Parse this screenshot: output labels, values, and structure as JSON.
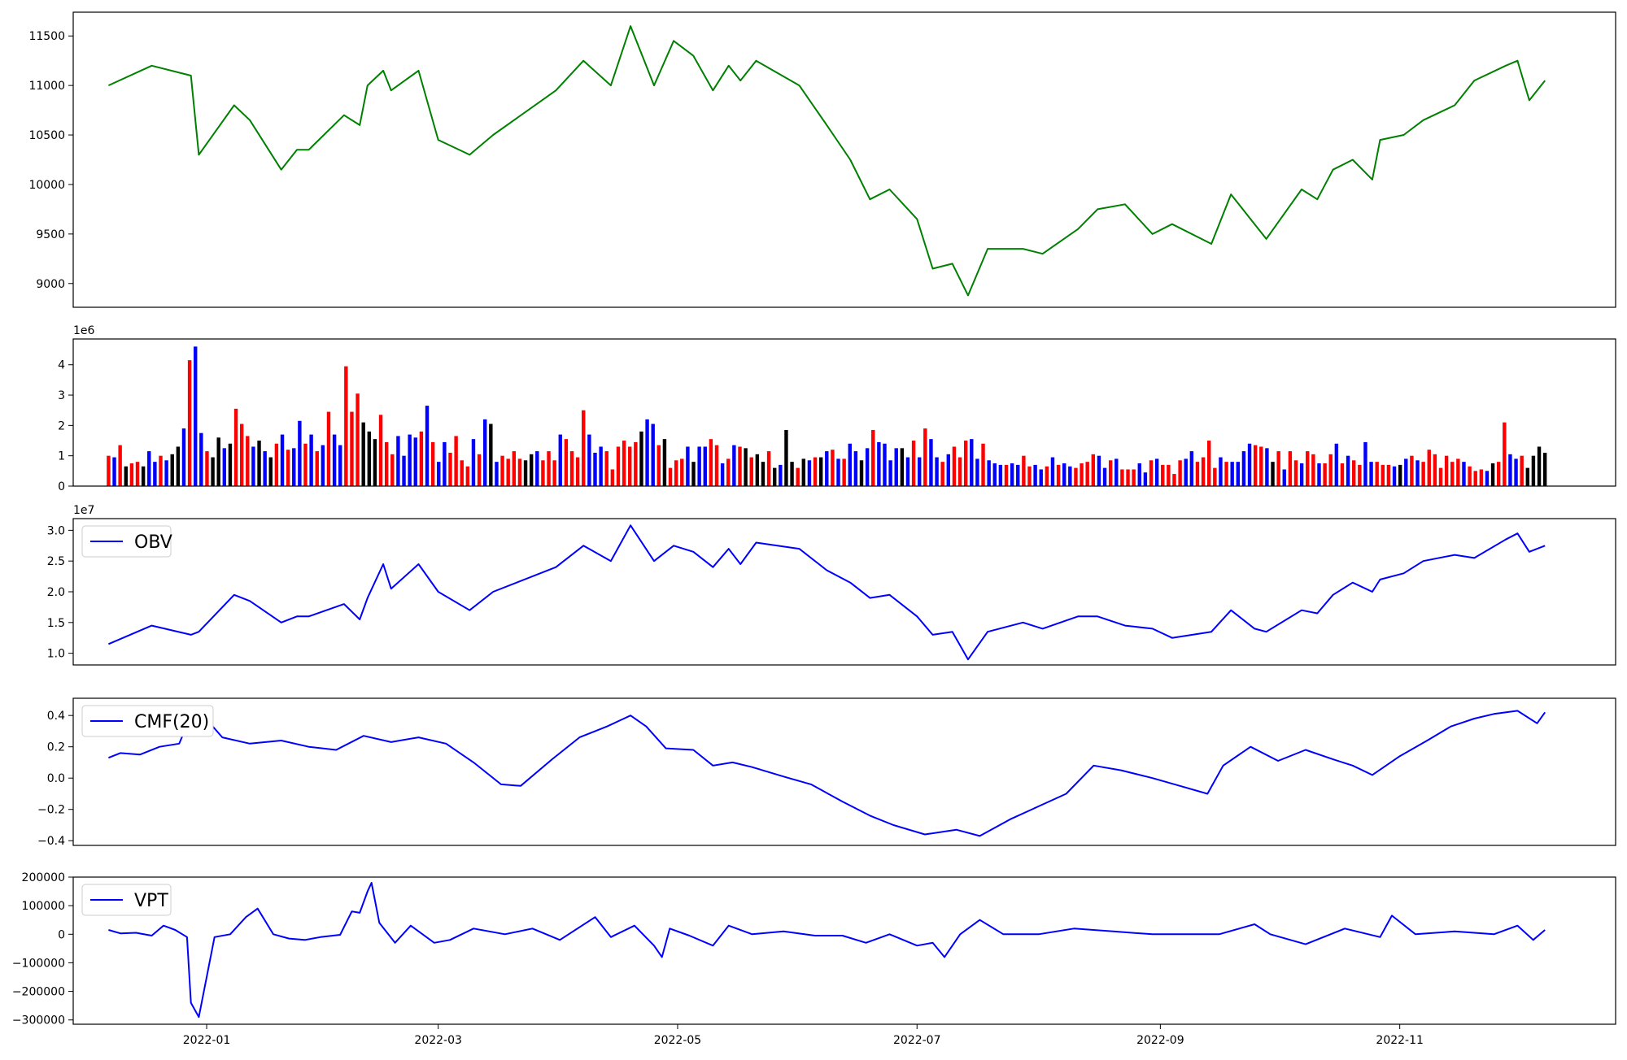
{
  "chart_data": [
    {
      "type": "line",
      "x": [
        "2021-12-07",
        "2021-12-18",
        "2021-12-28",
        "2021-12-30",
        "2022-01-08",
        "2022-01-12",
        "2022-01-20",
        "2022-01-24",
        "2022-01-27",
        "2022-02-05",
        "2022-02-09",
        "2022-02-11",
        "2022-02-15",
        "2022-02-17",
        "2022-02-24",
        "2022-03-01",
        "2022-03-09",
        "2022-03-15",
        "2022-03-31",
        "2022-04-07",
        "2022-04-14",
        "2022-04-19",
        "2022-04-25",
        "2022-04-30",
        "2022-05-05",
        "2022-05-10",
        "2022-05-14",
        "2022-05-17",
        "2022-05-21",
        "2022-06-01",
        "2022-06-08",
        "2022-06-14",
        "2022-06-19",
        "2022-06-24",
        "2022-07-01",
        "2022-07-05",
        "2022-07-10",
        "2022-07-14",
        "2022-07-19",
        "2022-07-28",
        "2022-08-02",
        "2022-08-11",
        "2022-08-16",
        "2022-08-23",
        "2022-08-30",
        "2022-09-04",
        "2022-09-14",
        "2022-09-19",
        "2022-09-25",
        "2022-09-28",
        "2022-10-07",
        "2022-10-11",
        "2022-10-15",
        "2022-10-20",
        "2022-10-25",
        "2022-10-27",
        "2022-11-02",
        "2022-11-07",
        "2022-11-15",
        "2022-11-20",
        "2022-11-28",
        "2022-12-01",
        "2022-12-04",
        "2022-12-08"
      ],
      "y": [
        11000,
        11200,
        11100,
        10300,
        10800,
        10650,
        10150,
        10350,
        10350,
        10700,
        10600,
        11000,
        11150,
        10950,
        11150,
        10450,
        10300,
        10500,
        10950,
        11250,
        11000,
        11600,
        11000,
        11450,
        11300,
        10950,
        11200,
        11050,
        11250,
        11000,
        10600,
        10250,
        9850,
        9950,
        9650,
        9150,
        9200,
        8880,
        9350,
        9350,
        9300,
        9550,
        9750,
        9800,
        9500,
        9600,
        9400,
        9900,
        9600,
        9450,
        9950,
        9850,
        10150,
        10250,
        10050,
        10450,
        10500,
        10650,
        10800,
        11050,
        11200,
        11250,
        10850,
        11050
      ],
      "ylim": [
        8760,
        11740
      ],
      "yticks": [
        9000,
        9500,
        10000,
        10500,
        11000,
        11500
      ],
      "color": "#008000",
      "grid": false
    },
    {
      "type": "bar",
      "x_start": "2021-12-07",
      "x_end": "2022-12-08",
      "values": [
        1.0,
        0.95,
        1.35,
        0.65,
        0.75,
        0.8,
        0.65,
        1.15,
        0.8,
        1.0,
        0.85,
        1.05,
        1.3,
        1.9,
        4.15,
        4.6,
        1.75,
        1.15,
        0.95,
        1.6,
        1.25,
        1.4,
        2.55,
        2.05,
        1.65,
        1.3,
        1.5,
        1.15,
        0.95,
        1.4,
        1.7,
        1.2,
        1.25,
        2.15,
        1.4,
        1.7,
        1.15,
        1.35,
        2.45,
        1.7,
        1.35,
        3.95,
        2.45,
        3.05,
        2.1,
        1.8,
        1.55,
        2.35,
        1.45,
        1.05,
        1.65,
        1.0,
        1.7,
        1.6,
        1.8,
        2.65,
        1.45,
        0.8,
        1.45,
        1.1,
        1.65,
        0.85,
        0.65,
        1.55,
        1.05,
        2.2,
        2.05,
        0.8,
        1.0,
        0.9,
        1.15,
        0.9,
        0.85,
        1.05,
        1.15,
        0.85,
        1.15,
        0.85,
        1.7,
        1.55,
        1.15,
        0.95,
        2.5,
        1.7,
        1.1,
        1.3,
        1.15,
        0.55,
        1.3,
        1.5,
        1.3,
        1.45,
        1.8,
        2.2,
        2.05,
        1.35,
        1.55,
        0.6,
        0.85,
        0.9,
        1.3,
        0.8,
        1.3,
        1.3,
        1.55,
        1.35,
        0.75,
        0.9,
        1.35,
        1.3,
        1.25,
        0.95,
        1.05,
        0.8,
        1.15,
        0.6,
        0.7,
        1.85,
        0.8,
        0.6,
        0.9,
        0.85,
        0.95,
        0.95,
        1.15,
        1.2,
        0.9,
        0.9,
        1.4,
        1.15,
        0.85,
        1.25,
        1.85,
        1.45,
        1.4,
        0.85,
        1.25,
        1.25,
        0.95,
        1.5,
        0.95,
        1.9,
        1.55,
        0.95,
        0.8,
        1.05,
        1.3,
        0.95,
        1.5,
        1.55,
        0.9,
        1.4,
        0.85,
        0.75,
        0.7,
        0.7,
        0.75,
        0.7,
        1.0,
        0.65,
        0.7,
        0.55,
        0.65,
        0.95,
        0.7,
        0.75,
        0.65,
        0.6,
        0.75,
        0.8,
        1.05,
        1.0,
        0.6,
        0.85,
        0.9,
        0.55,
        0.55,
        0.55,
        0.75,
        0.45,
        0.85,
        0.9,
        0.7,
        0.7,
        0.4,
        0.85,
        0.9,
        1.15,
        0.8,
        0.95,
        1.5,
        0.6,
        0.95,
        0.8,
        0.8,
        0.8,
        1.15,
        1.4,
        1.35,
        1.3,
        1.25,
        0.8,
        1.15,
        0.55,
        1.15,
        0.85,
        0.75,
        1.15,
        1.05,
        0.75,
        0.75,
        1.05,
        1.4,
        0.75,
        1.0,
        0.85,
        0.7,
        1.45,
        0.8,
        0.8,
        0.7,
        0.7,
        0.65,
        0.7,
        0.9,
        1.0,
        0.85,
        0.8,
        1.2,
        1.05,
        0.6,
        1.0,
        0.8,
        0.9,
        0.8,
        0.65,
        0.5,
        0.55,
        0.5,
        0.75,
        0.8,
        2.1,
        1.05,
        0.9,
        1.0,
        0.6,
        1.0,
        1.3,
        1.1
      ],
      "colors": [
        "r",
        "b",
        "r",
        "k",
        "r",
        "r",
        "k",
        "b",
        "b",
        "r",
        "b",
        "k",
        "k",
        "b",
        "r",
        "b",
        "b",
        "r",
        "k",
        "k",
        "b",
        "k",
        "r",
        "r",
        "r",
        "b",
        "k",
        "b",
        "k",
        "r",
        "b",
        "r",
        "b",
        "b",
        "r",
        "b",
        "r",
        "b",
        "r",
        "b",
        "b",
        "r",
        "r",
        "r",
        "k",
        "k",
        "k",
        "r",
        "r",
        "r",
        "b",
        "b",
        "b",
        "b",
        "r",
        "b",
        "r",
        "b",
        "b",
        "r",
        "r",
        "r",
        "r",
        "b",
        "r",
        "b",
        "k",
        "b",
        "r",
        "r",
        "r",
        "r",
        "k",
        "k",
        "b",
        "r",
        "r",
        "r",
        "b",
        "r",
        "r",
        "r",
        "r",
        "b",
        "b",
        "b",
        "r",
        "r",
        "r",
        "r",
        "r",
        "r",
        "k",
        "b",
        "b",
        "r",
        "k",
        "r",
        "r",
        "r",
        "b",
        "k",
        "b",
        "b",
        "r",
        "r",
        "b",
        "r",
        "b",
        "r",
        "k",
        "r",
        "k",
        "k",
        "r",
        "k",
        "b",
        "k",
        "k",
        "r",
        "k",
        "b",
        "r",
        "k",
        "b",
        "r",
        "b",
        "r",
        "b",
        "b",
        "k",
        "b",
        "r",
        "b",
        "b",
        "b",
        "b",
        "k",
        "b",
        "r",
        "b",
        "r",
        "b",
        "b",
        "r",
        "b",
        "r",
        "r",
        "r",
        "b",
        "b",
        "r",
        "b",
        "b",
        "b",
        "r",
        "b",
        "b",
        "r",
        "r",
        "b",
        "b",
        "r",
        "b",
        "r",
        "b",
        "b",
        "r",
        "r",
        "r",
        "r",
        "b",
        "b",
        "r",
        "b",
        "r",
        "r",
        "r",
        "b",
        "b",
        "r",
        "b",
        "r",
        "r",
        "r",
        "r",
        "b",
        "b",
        "r",
        "r",
        "r",
        "r",
        "b",
        "r",
        "b",
        "b",
        "b",
        "b",
        "r",
        "r",
        "b",
        "k",
        "r",
        "b",
        "r",
        "r",
        "b",
        "r",
        "r",
        "b",
        "r",
        "r",
        "b",
        "r",
        "b",
        "r",
        "r",
        "b",
        "b",
        "r",
        "r",
        "r",
        "b",
        "k",
        "b",
        "r",
        "b",
        "r",
        "r",
        "r",
        "r",
        "r",
        "r",
        "r",
        "b",
        "r",
        "r",
        "r",
        "b",
        "k",
        "r",
        "r",
        "b",
        "b",
        "r"
      ],
      "ylim": [
        0,
        4.85
      ],
      "yticks": [
        0,
        1,
        2,
        3,
        4
      ],
      "offset_text": "1e6",
      "grid": false
    },
    {
      "type": "line",
      "x": [
        "2021-12-07",
        "2021-12-18",
        "2021-12-28",
        "2021-12-30",
        "2022-01-08",
        "2022-01-12",
        "2022-01-20",
        "2022-01-24",
        "2022-01-27",
        "2022-02-05",
        "2022-02-09",
        "2022-02-11",
        "2022-02-15",
        "2022-02-17",
        "2022-02-24",
        "2022-03-01",
        "2022-03-09",
        "2022-03-15",
        "2022-03-31",
        "2022-04-07",
        "2022-04-14",
        "2022-04-19",
        "2022-04-25",
        "2022-04-30",
        "2022-05-05",
        "2022-05-10",
        "2022-05-14",
        "2022-05-17",
        "2022-05-21",
        "2022-06-01",
        "2022-06-08",
        "2022-06-14",
        "2022-06-19",
        "2022-06-24",
        "2022-07-01",
        "2022-07-05",
        "2022-07-10",
        "2022-07-14",
        "2022-07-19",
        "2022-07-28",
        "2022-08-02",
        "2022-08-11",
        "2022-08-16",
        "2022-08-23",
        "2022-08-30",
        "2022-09-04",
        "2022-09-14",
        "2022-09-19",
        "2022-09-25",
        "2022-09-28",
        "2022-10-07",
        "2022-10-11",
        "2022-10-15",
        "2022-10-20",
        "2022-10-25",
        "2022-10-27",
        "2022-11-02",
        "2022-11-07",
        "2022-11-15",
        "2022-11-20",
        "2022-11-28",
        "2022-12-01",
        "2022-12-04",
        "2022-12-08"
      ],
      "y": [
        1.15,
        1.45,
        1.3,
        1.35,
        1.95,
        1.85,
        1.5,
        1.6,
        1.6,
        1.8,
        1.55,
        1.9,
        2.45,
        2.05,
        2.45,
        2.0,
        1.7,
        2.0,
        2.4,
        2.75,
        2.5,
        3.08,
        2.5,
        2.75,
        2.65,
        2.4,
        2.7,
        2.45,
        2.8,
        2.7,
        2.35,
        2.15,
        1.9,
        1.95,
        1.6,
        1.3,
        1.35,
        0.9,
        1.35,
        1.5,
        1.4,
        1.6,
        1.6,
        1.45,
        1.4,
        1.25,
        1.35,
        1.7,
        1.4,
        1.35,
        1.7,
        1.65,
        1.95,
        2.15,
        2.0,
        2.2,
        2.3,
        2.5,
        2.6,
        2.55,
        2.85,
        2.95,
        2.65,
        2.75
      ],
      "ylim": [
        0.81,
        3.19
      ],
      "yticks": [
        1.0,
        1.5,
        2.0,
        2.5,
        3.0
      ],
      "tick_labels": [
        "1.0",
        "1.5",
        "2.0",
        "2.5",
        "3.0"
      ],
      "offset_text": "1e7",
      "color": "#0000ff",
      "legend": [
        "OBV"
      ],
      "legend_position": "upper left",
      "grid": false
    },
    {
      "type": "line",
      "x": [
        "2021-12-07",
        "2021-12-10",
        "2021-12-15",
        "2021-12-20",
        "2021-12-25",
        "2021-12-29",
        "2022-01-05",
        "2022-01-12",
        "2022-01-20",
        "2022-01-27",
        "2022-02-03",
        "2022-02-10",
        "2022-02-17",
        "2022-02-24",
        "2022-03-03",
        "2022-03-10",
        "2022-03-17",
        "2022-03-22",
        "2022-03-30",
        "2022-04-06",
        "2022-04-13",
        "2022-04-19",
        "2022-04-23",
        "2022-04-28",
        "2022-05-05",
        "2022-05-10",
        "2022-05-15",
        "2022-05-20",
        "2022-05-28",
        "2022-06-04",
        "2022-06-12",
        "2022-06-19",
        "2022-06-25",
        "2022-07-03",
        "2022-07-11",
        "2022-07-17",
        "2022-07-25",
        "2022-08-01",
        "2022-08-08",
        "2022-08-15",
        "2022-08-22",
        "2022-08-30",
        "2022-09-06",
        "2022-09-13",
        "2022-09-17",
        "2022-09-24",
        "2022-10-01",
        "2022-10-08",
        "2022-10-15",
        "2022-10-20",
        "2022-10-25",
        "2022-11-01",
        "2022-11-08",
        "2022-11-14",
        "2022-11-20",
        "2022-11-25",
        "2022-12-01",
        "2022-12-06",
        "2022-12-08"
      ],
      "y": [
        0.13,
        0.16,
        0.15,
        0.2,
        0.22,
        0.46,
        0.26,
        0.22,
        0.24,
        0.2,
        0.18,
        0.27,
        0.23,
        0.26,
        0.22,
        0.1,
        -0.04,
        -0.05,
        0.12,
        0.26,
        0.33,
        0.4,
        0.33,
        0.19,
        0.18,
        0.08,
        0.1,
        0.07,
        0.01,
        -0.04,
        -0.15,
        -0.24,
        -0.3,
        -0.36,
        -0.33,
        -0.37,
        -0.26,
        -0.18,
        -0.1,
        0.08,
        0.05,
        0.0,
        -0.05,
        -0.1,
        0.08,
        0.2,
        0.11,
        0.18,
        0.12,
        0.08,
        0.02,
        0.14,
        0.24,
        0.33,
        0.38,
        0.41,
        0.43,
        0.35,
        0.42
      ],
      "ylim": [
        -0.43,
        0.51
      ],
      "yticks": [
        -0.4,
        -0.2,
        0.0,
        0.2,
        0.4
      ],
      "tick_labels": [
        "−0.4",
        "−0.2",
        "0.0",
        "0.2",
        "0.4"
      ],
      "color": "#0000ff",
      "legend": [
        "CMF(20)"
      ],
      "legend_position": "upper left",
      "grid": false
    },
    {
      "type": "line",
      "x": [
        "2021-12-07",
        "2021-12-10",
        "2021-12-14",
        "2021-12-18",
        "2021-12-21",
        "2021-12-24",
        "2021-12-27",
        "2021-12-28",
        "2021-12-30",
        "2022-01-03",
        "2022-01-07",
        "2022-01-11",
        "2022-01-14",
        "2022-01-18",
        "2022-01-22",
        "2022-01-26",
        "2022-01-30",
        "2022-02-04",
        "2022-02-07",
        "2022-02-09",
        "2022-02-11",
        "2022-02-12",
        "2022-02-14",
        "2022-02-18",
        "2022-02-22",
        "2022-02-28",
        "2022-03-04",
        "2022-03-10",
        "2022-03-18",
        "2022-03-25",
        "2022-04-01",
        "2022-04-10",
        "2022-04-14",
        "2022-04-20",
        "2022-04-25",
        "2022-04-27",
        "2022-04-29",
        "2022-05-04",
        "2022-05-10",
        "2022-05-14",
        "2022-05-20",
        "2022-05-28",
        "2022-06-05",
        "2022-06-12",
        "2022-06-18",
        "2022-06-24",
        "2022-07-01",
        "2022-07-05",
        "2022-07-08",
        "2022-07-12",
        "2022-07-17",
        "2022-07-23",
        "2022-08-01",
        "2022-08-10",
        "2022-08-20",
        "2022-08-30",
        "2022-09-08",
        "2022-09-16",
        "2022-09-25",
        "2022-09-29",
        "2022-10-08",
        "2022-10-18",
        "2022-10-27",
        "2022-10-30",
        "2022-11-05",
        "2022-11-15",
        "2022-11-25",
        "2022-12-01",
        "2022-12-05",
        "2022-12-08"
      ],
      "y": [
        15000,
        3000,
        5000,
        -5000,
        30000,
        15000,
        -10000,
        -240000,
        -290000,
        -10000,
        0,
        60000,
        90000,
        0,
        -15000,
        -20000,
        -10000,
        -2000,
        80000,
        75000,
        150000,
        180000,
        40000,
        -30000,
        30000,
        -30000,
        -20000,
        20000,
        0,
        20000,
        -20000,
        60000,
        -10000,
        30000,
        -40000,
        -80000,
        20000,
        -5000,
        -40000,
        30000,
        0,
        10000,
        -5000,
        -5000,
        -30000,
        0,
        -40000,
        -30000,
        -80000,
        0,
        50000,
        0,
        0,
        20000,
        10000,
        0,
        0,
        0,
        35000,
        0,
        -35000,
        20000,
        -10000,
        65000,
        0,
        10000,
        0,
        30000,
        -20000,
        15000
      ],
      "ylim": [
        -315000,
        200000
      ],
      "yticks": [
        -300000,
        -200000,
        -100000,
        0,
        100000,
        200000
      ],
      "tick_labels": [
        "−300000",
        "−200000",
        "−100000",
        "0",
        "100000",
        "200000"
      ],
      "color": "#0000ff",
      "legend": [
        "VPT"
      ],
      "legend_position": "upper left",
      "xlim": [
        "2021-11-28",
        "2022-12-26"
      ],
      "xticks": [
        "2022-01-01",
        "2022-03-01",
        "2022-05-01",
        "2022-07-01",
        "2022-09-01",
        "2022-11-01"
      ],
      "xtick_labels": [
        "2022-01",
        "2022-03",
        "2022-05",
        "2022-07",
        "2022-09",
        "2022-11"
      ],
      "grid": false
    }
  ],
  "bar_color_map": {
    "r": "#ff0000",
    "b": "#0000ff",
    "k": "#000000"
  },
  "shared_xlim": [
    "2021-11-28",
    "2022-12-26"
  ]
}
